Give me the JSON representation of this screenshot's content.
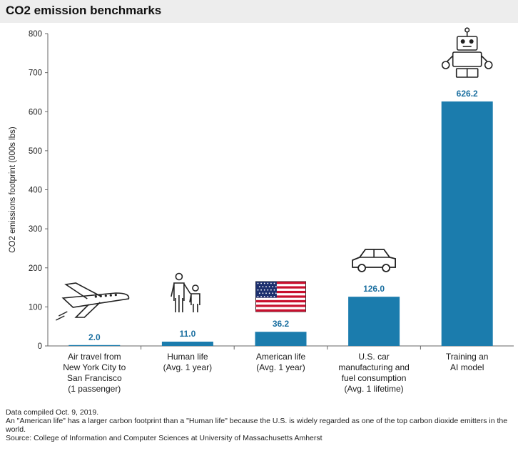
{
  "title": "CO2 emission benchmarks",
  "colors": {
    "bar": "#1b7cad",
    "value_label": "#1b6fa0",
    "axis": "#666666",
    "title_bar": "#ededed"
  },
  "chart_data": {
    "type": "bar",
    "ylabel": "CO2 emissions footprint (000s lbs)",
    "ylim": [
      0,
      800
    ],
    "yticks": [
      0,
      100,
      200,
      300,
      400,
      500,
      600,
      700,
      800
    ],
    "grid": false,
    "categories": [
      [
        "Air travel from",
        "New York City to",
        "San Francisco",
        "(1 passenger)"
      ],
      [
        "Human life",
        "(Avg. 1 year)"
      ],
      [
        "American life",
        "(Avg. 1 year)"
      ],
      [
        "U.S. car",
        "manufacturing and",
        "fuel consumption",
        "(Avg. 1 lifetime)"
      ],
      [
        "Training an",
        "AI model"
      ]
    ],
    "values": [
      2.0,
      11.0,
      36.2,
      126.0,
      626.2
    ],
    "value_labels": [
      "2.0",
      "11.0",
      "36.2",
      "126.0",
      "626.2"
    ],
    "icons": [
      "airplane-icon",
      "people-icon",
      "us-flag-icon",
      "car-icon",
      "robot-icon"
    ]
  },
  "footnotes": [
    "Data compiled Oct. 9, 2019.",
    "An \"American life\" has a larger carbon footprint than a \"Human life\" because the U.S. is widely regarded as one of the top carbon dioxide emitters in the world.",
    "Source: College of Information and Computer Sciences at University of Massachusetts Amherst"
  ]
}
